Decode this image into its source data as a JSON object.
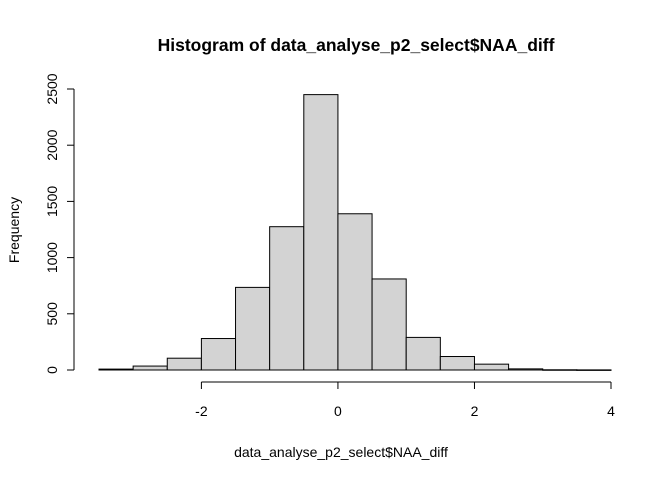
{
  "chart_data": {
    "type": "bar",
    "title": "Histogram of data_analyse_p2_select$NAA_diff",
    "xlabel": "data_analyse_p2_select$NAA_diff",
    "ylabel": "Frequency",
    "bins": [
      {
        "start": -3.5,
        "end": -3.0,
        "count": 8
      },
      {
        "start": -3.0,
        "end": -2.5,
        "count": 35
      },
      {
        "start": -2.5,
        "end": -2.0,
        "count": 105
      },
      {
        "start": -2.0,
        "end": -1.5,
        "count": 280
      },
      {
        "start": -1.5,
        "end": -1.0,
        "count": 735
      },
      {
        "start": -1.0,
        "end": -0.5,
        "count": 1275
      },
      {
        "start": -0.5,
        "end": 0.0,
        "count": 2450
      },
      {
        "start": 0.0,
        "end": 0.5,
        "count": 1390
      },
      {
        "start": 0.5,
        "end": 1.0,
        "count": 810
      },
      {
        "start": 1.0,
        "end": 1.5,
        "count": 290
      },
      {
        "start": 1.5,
        "end": 2.0,
        "count": 120
      },
      {
        "start": 2.0,
        "end": 2.5,
        "count": 52
      },
      {
        "start": 2.5,
        "end": 3.0,
        "count": 10
      },
      {
        "start": 3.0,
        "end": 3.5,
        "count": 2
      },
      {
        "start": 3.5,
        "end": 4.0,
        "count": 1
      }
    ],
    "x_ticks": [
      -2,
      0,
      2,
      4
    ],
    "x_tick_labels": [
      "-2",
      "0",
      "2",
      "4"
    ],
    "y_ticks": [
      0,
      500,
      1000,
      1500,
      2000,
      2500
    ],
    "y_tick_labels": [
      "0",
      "500",
      "1000",
      "1500",
      "2000",
      "2500"
    ],
    "xlim": [
      -3.5,
      4.0
    ],
    "ylim": [
      0,
      2500
    ],
    "grid": false,
    "bar_color": "#d3d3d3",
    "edge_color": "#000000"
  }
}
